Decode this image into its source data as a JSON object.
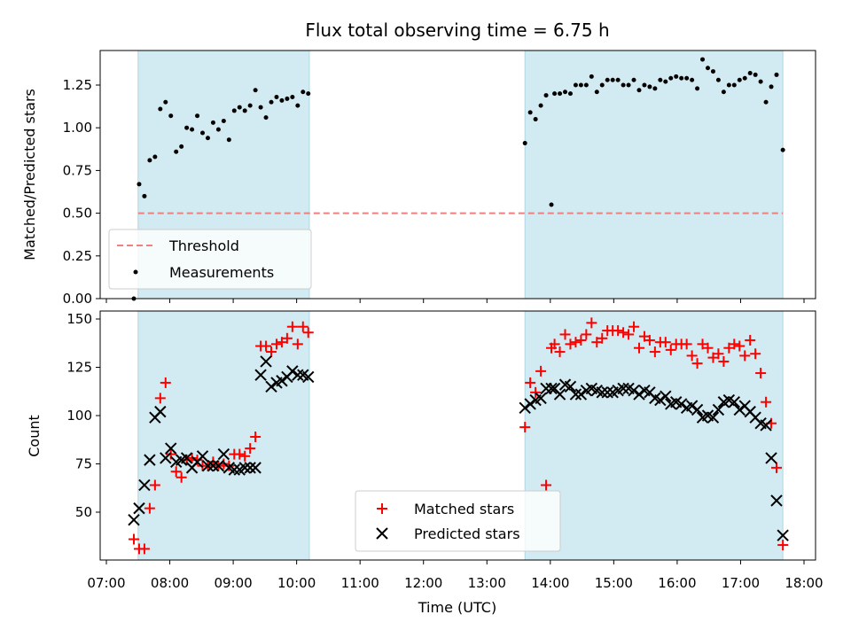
{
  "chart_data": [
    {
      "type": "scatter",
      "title": "Flux total observing time = 6.75 h",
      "xlabel": "",
      "ylabel": "Matched/Predicted stars",
      "xlim": [
        "07:00",
        "18:00"
      ],
      "ylim": [
        0,
        1.45
      ],
      "yticks": [
        "0.00",
        "0.25",
        "0.50",
        "0.75",
        "1.00",
        "1.25"
      ],
      "shaded_spans": [
        [
          "07:30",
          "10:12"
        ],
        [
          "13:36",
          "17:40"
        ]
      ],
      "threshold": {
        "name": "Threshold",
        "value": 0.5,
        "x_start": "07:30",
        "x_end": "17:40",
        "color": "#f08080"
      },
      "series": [
        {
          "name": "Measurements",
          "marker": "dot",
          "color": "#000000",
          "points": [
            [
              "07:26",
              0.0
            ],
            [
              "07:31",
              0.67
            ],
            [
              "07:36",
              0.6
            ],
            [
              "07:41",
              0.81
            ],
            [
              "07:46",
              0.83
            ],
            [
              "07:51",
              1.11
            ],
            [
              "07:56",
              1.15
            ],
            [
              "08:01",
              1.07
            ],
            [
              "08:06",
              0.86
            ],
            [
              "08:11",
              0.89
            ],
            [
              "08:16",
              1.0
            ],
            [
              "08:21",
              0.99
            ],
            [
              "08:26",
              1.07
            ],
            [
              "08:31",
              0.97
            ],
            [
              "08:36",
              0.94
            ],
            [
              "08:41",
              1.03
            ],
            [
              "08:46",
              0.99
            ],
            [
              "08:51",
              1.04
            ],
            [
              "08:56",
              0.93
            ],
            [
              "09:01",
              1.1
            ],
            [
              "09:06",
              1.12
            ],
            [
              "09:11",
              1.1
            ],
            [
              "09:16",
              1.13
            ],
            [
              "09:21",
              1.22
            ],
            [
              "09:26",
              1.12
            ],
            [
              "09:31",
              1.06
            ],
            [
              "09:36",
              1.15
            ],
            [
              "09:41",
              1.18
            ],
            [
              "09:46",
              1.16
            ],
            [
              "09:51",
              1.17
            ],
            [
              "09:56",
              1.18
            ],
            [
              "10:01",
              1.13
            ],
            [
              "10:06",
              1.21
            ],
            [
              "10:11",
              1.2
            ],
            [
              "13:36",
              0.91
            ],
            [
              "13:41",
              1.09
            ],
            [
              "13:46",
              1.05
            ],
            [
              "13:51",
              1.13
            ],
            [
              "13:56",
              1.19
            ],
            [
              "14:01",
              0.55
            ],
            [
              "14:04",
              1.2
            ],
            [
              "14:09",
              1.2
            ],
            [
              "14:14",
              1.21
            ],
            [
              "14:19",
              1.2
            ],
            [
              "14:24",
              1.25
            ],
            [
              "14:29",
              1.25
            ],
            [
              "14:34",
              1.25
            ],
            [
              "14:39",
              1.3
            ],
            [
              "14:44",
              1.21
            ],
            [
              "14:49",
              1.25
            ],
            [
              "14:54",
              1.28
            ],
            [
              "14:59",
              1.28
            ],
            [
              "15:04",
              1.28
            ],
            [
              "15:09",
              1.25
            ],
            [
              "15:14",
              1.25
            ],
            [
              "15:19",
              1.28
            ],
            [
              "15:24",
              1.22
            ],
            [
              "15:29",
              1.25
            ],
            [
              "15:34",
              1.24
            ],
            [
              "15:39",
              1.23
            ],
            [
              "15:44",
              1.28
            ],
            [
              "15:49",
              1.27
            ],
            [
              "15:54",
              1.29
            ],
            [
              "15:59",
              1.3
            ],
            [
              "16:04",
              1.29
            ],
            [
              "16:09",
              1.29
            ],
            [
              "16:14",
              1.28
            ],
            [
              "16:19",
              1.23
            ],
            [
              "16:24",
              1.4
            ],
            [
              "16:29",
              1.35
            ],
            [
              "16:34",
              1.33
            ],
            [
              "16:39",
              1.28
            ],
            [
              "16:44",
              1.21
            ],
            [
              "16:49",
              1.25
            ],
            [
              "16:54",
              1.25
            ],
            [
              "16:59",
              1.28
            ],
            [
              "17:04",
              1.29
            ],
            [
              "17:09",
              1.32
            ],
            [
              "17:14",
              1.31
            ],
            [
              "17:19",
              1.27
            ],
            [
              "17:24",
              1.15
            ],
            [
              "17:29",
              1.24
            ],
            [
              "17:34",
              1.31
            ],
            [
              "17:40",
              0.87
            ]
          ]
        }
      ],
      "legend": "lower-left"
    },
    {
      "type": "scatter",
      "xlabel": "Time (UTC)",
      "ylabel": "Count",
      "xlim": [
        "07:00",
        "18:00"
      ],
      "xticks": [
        "07:00",
        "08:00",
        "09:00",
        "10:00",
        "11:00",
        "12:00",
        "13:00",
        "14:00",
        "15:00",
        "16:00",
        "17:00",
        "18:00"
      ],
      "ylim": [
        22,
        155
      ],
      "yticks": [
        "50",
        "75",
        "100",
        "125",
        "150"
      ],
      "shaded_spans": [
        [
          "07:30",
          "10:12"
        ],
        [
          "13:36",
          "17:40"
        ]
      ],
      "series": [
        {
          "name": "Matched stars",
          "marker": "plus",
          "color": "#ff0000",
          "points": [
            [
              "07:26",
              36
            ],
            [
              "07:31",
              31
            ],
            [
              "07:36",
              31
            ],
            [
              "07:41",
              52
            ],
            [
              "07:46",
              64
            ],
            [
              "07:51",
              109
            ],
            [
              "07:56",
              117
            ],
            [
              "08:01",
              80
            ],
            [
              "08:06",
              71
            ],
            [
              "08:11",
              68
            ],
            [
              "08:16",
              77
            ],
            [
              "08:21",
              78
            ],
            [
              "08:26",
              77
            ],
            [
              "08:31",
              74
            ],
            [
              "08:36",
              74
            ],
            [
              "08:41",
              76
            ],
            [
              "08:46",
              74
            ],
            [
              "08:51",
              75
            ],
            [
              "08:56",
              74
            ],
            [
              "09:01",
              80
            ],
            [
              "09:06",
              80
            ],
            [
              "09:11",
              79
            ],
            [
              "09:16",
              83
            ],
            [
              "09:21",
              89
            ],
            [
              "09:26",
              136
            ],
            [
              "09:31",
              136
            ],
            [
              "09:36",
              133
            ],
            [
              "09:41",
              137
            ],
            [
              "09:46",
              138
            ],
            [
              "09:51",
              140
            ],
            [
              "09:56",
              146
            ],
            [
              "10:01",
              137
            ],
            [
              "10:06",
              146
            ],
            [
              "10:11",
              143
            ],
            [
              "13:36",
              94
            ],
            [
              "13:41",
              117
            ],
            [
              "13:46",
              112
            ],
            [
              "13:51",
              123
            ],
            [
              "13:56",
              64
            ],
            [
              "14:01",
              135
            ],
            [
              "14:04",
              137
            ],
            [
              "14:09",
              133
            ],
            [
              "14:14",
              142
            ],
            [
              "14:19",
              137
            ],
            [
              "14:24",
              138
            ],
            [
              "14:29",
              139
            ],
            [
              "14:34",
              142
            ],
            [
              "14:39",
              148
            ],
            [
              "14:44",
              138
            ],
            [
              "14:49",
              140
            ],
            [
              "14:54",
              144
            ],
            [
              "14:59",
              144
            ],
            [
              "15:04",
              144
            ],
            [
              "15:09",
              143
            ],
            [
              "15:14",
              142
            ],
            [
              "15:19",
              146
            ],
            [
              "15:24",
              135
            ],
            [
              "15:29",
              141
            ],
            [
              "15:34",
              139
            ],
            [
              "15:39",
              133
            ],
            [
              "15:44",
              138
            ],
            [
              "15:49",
              138
            ],
            [
              "15:54",
              134
            ],
            [
              "15:59",
              137
            ],
            [
              "16:04",
              137
            ],
            [
              "16:09",
              137
            ],
            [
              "16:14",
              131
            ],
            [
              "16:19",
              127
            ],
            [
              "16:24",
              137
            ],
            [
              "16:29",
              135
            ],
            [
              "16:34",
              130
            ],
            [
              "16:39",
              132
            ],
            [
              "16:44",
              128
            ],
            [
              "16:49",
              135
            ],
            [
              "16:54",
              137
            ],
            [
              "16:59",
              136
            ],
            [
              "17:04",
              131
            ],
            [
              "17:09",
              139
            ],
            [
              "17:14",
              132
            ],
            [
              "17:19",
              122
            ],
            [
              "17:24",
              107
            ],
            [
              "17:29",
              96
            ],
            [
              "17:34",
              73
            ],
            [
              "17:40",
              33
            ]
          ]
        },
        {
          "name": "Predicted stars",
          "marker": "x",
          "color": "#000000",
          "points": [
            [
              "07:26",
              46
            ],
            [
              "07:31",
              52
            ],
            [
              "07:36",
              64
            ],
            [
              "07:41",
              77
            ],
            [
              "07:46",
              99
            ],
            [
              "07:51",
              102
            ],
            [
              "07:56",
              78
            ],
            [
              "08:01",
              83
            ],
            [
              "08:06",
              76
            ],
            [
              "08:11",
              77
            ],
            [
              "08:16",
              78
            ],
            [
              "08:21",
              73
            ],
            [
              "08:26",
              76
            ],
            [
              "08:31",
              79
            ],
            [
              "08:36",
              74
            ],
            [
              "08:41",
              74
            ],
            [
              "08:46",
              74
            ],
            [
              "08:51",
              80
            ],
            [
              "08:56",
              73
            ],
            [
              "09:01",
              72
            ],
            [
              "09:06",
              72
            ],
            [
              "09:11",
              73
            ],
            [
              "09:16",
              73
            ],
            [
              "09:21",
              73
            ],
            [
              "09:26",
              121
            ],
            [
              "09:31",
              128
            ],
            [
              "09:36",
              115
            ],
            [
              "09:41",
              117
            ],
            [
              "09:46",
              118
            ],
            [
              "09:51",
              120
            ],
            [
              "09:56",
              123
            ],
            [
              "10:01",
              121
            ],
            [
              "10:06",
              121
            ],
            [
              "10:11",
              120
            ],
            [
              "13:36",
              104
            ],
            [
              "13:41",
              106
            ],
            [
              "13:46",
              108
            ],
            [
              "13:51",
              109
            ],
            [
              "13:56",
              114
            ],
            [
              "14:01",
              114
            ],
            [
              "14:04",
              114
            ],
            [
              "14:09",
              111
            ],
            [
              "14:14",
              116
            ],
            [
              "14:19",
              115
            ],
            [
              "14:24",
              111
            ],
            [
              "14:29",
              111
            ],
            [
              "14:34",
              113
            ],
            [
              "14:39",
              114
            ],
            [
              "14:44",
              113
            ],
            [
              "14:49",
              112
            ],
            [
              "14:54",
              112
            ],
            [
              "14:59",
              112
            ],
            [
              "15:04",
              113
            ],
            [
              "15:09",
              114
            ],
            [
              "15:14",
              114
            ],
            [
              "15:19",
              113
            ],
            [
              "15:24",
              111
            ],
            [
              "15:29",
              113
            ],
            [
              "15:34",
              112
            ],
            [
              "15:39",
              109
            ],
            [
              "15:44",
              108
            ],
            [
              "15:49",
              110
            ],
            [
              "15:54",
              106
            ],
            [
              "15:59",
              107
            ],
            [
              "16:04",
              106
            ],
            [
              "16:09",
              104
            ],
            [
              "16:14",
              105
            ],
            [
              "16:19",
              103
            ],
            [
              "16:24",
              99
            ],
            [
              "16:29",
              100
            ],
            [
              "16:34",
              99
            ],
            [
              "16:39",
              103
            ],
            [
              "16:44",
              107
            ],
            [
              "16:49",
              108
            ],
            [
              "16:54",
              107
            ],
            [
              "16:59",
              103
            ],
            [
              "17:04",
              105
            ],
            [
              "17:09",
              102
            ],
            [
              "17:14",
              99
            ],
            [
              "17:19",
              96
            ],
            [
              "17:24",
              95
            ],
            [
              "17:29",
              78
            ],
            [
              "17:34",
              56
            ],
            [
              "17:40",
              38
            ]
          ]
        }
      ],
      "legend": "lower-center"
    }
  ],
  "colors": {
    "shade": "#add8e6",
    "matched": "#ff0000",
    "predicted": "#000000",
    "threshold": "#f08080"
  }
}
